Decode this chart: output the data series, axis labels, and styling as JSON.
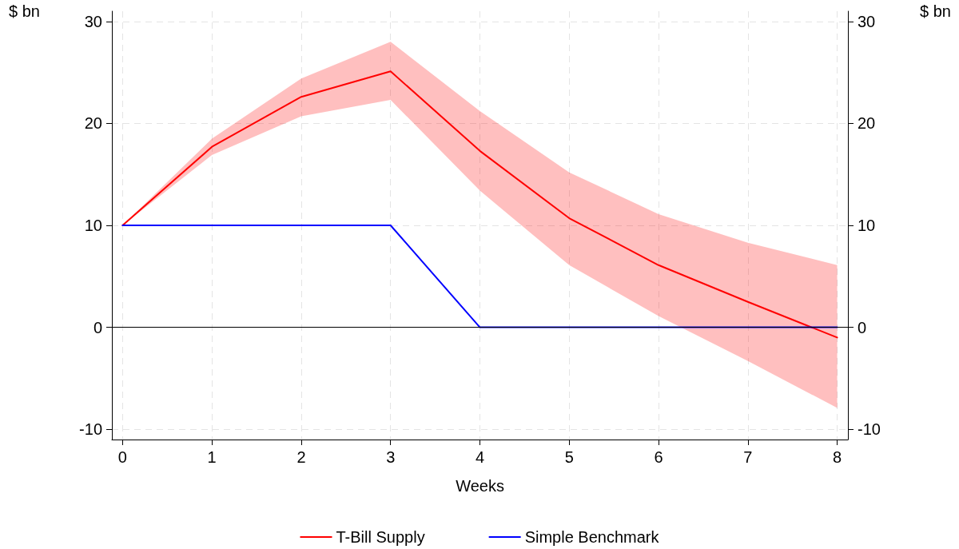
{
  "chart_data": {
    "type": "line",
    "xlabel": "Weeks",
    "ylabel": "$ bn",
    "y2label": "$ bn",
    "x": [
      0,
      1,
      2,
      3,
      4,
      5,
      6,
      7,
      8
    ],
    "series": [
      {
        "name": "T-Bill Supply",
        "color": "#ff0000",
        "values": [
          10,
          17.7,
          22.6,
          25.1,
          17.3,
          10.7,
          6.1,
          2.5,
          -1.0
        ],
        "lower": [
          10,
          16.9,
          20.7,
          22.3,
          13.4,
          6.1,
          1.1,
          -3.3,
          -7.9
        ],
        "upper": [
          10,
          18.5,
          24.4,
          28.0,
          21.2,
          15.2,
          11.1,
          8.3,
          6.1
        ]
      },
      {
        "name": "Simple Benchmark",
        "color": "#0000ff",
        "values": [
          10,
          10,
          10,
          10,
          0,
          0,
          0,
          0,
          0
        ]
      }
    ],
    "xlim": [
      -0.12,
      8.12
    ],
    "xticks": [
      0,
      1,
      2,
      3,
      4,
      5,
      6,
      7,
      8
    ],
    "ylim": [
      -11,
      31
    ],
    "yticks": [
      -10,
      0,
      10,
      20,
      30
    ],
    "y2lim": [
      -11,
      31
    ],
    "y2ticks": [
      -10,
      0,
      10,
      20,
      30
    ],
    "ref_lines": [
      {
        "axis": "y",
        "value": 0,
        "color": "#000000"
      }
    ],
    "grid": true,
    "legend": "bottom",
    "marker": "none",
    "line_style": "solid"
  }
}
